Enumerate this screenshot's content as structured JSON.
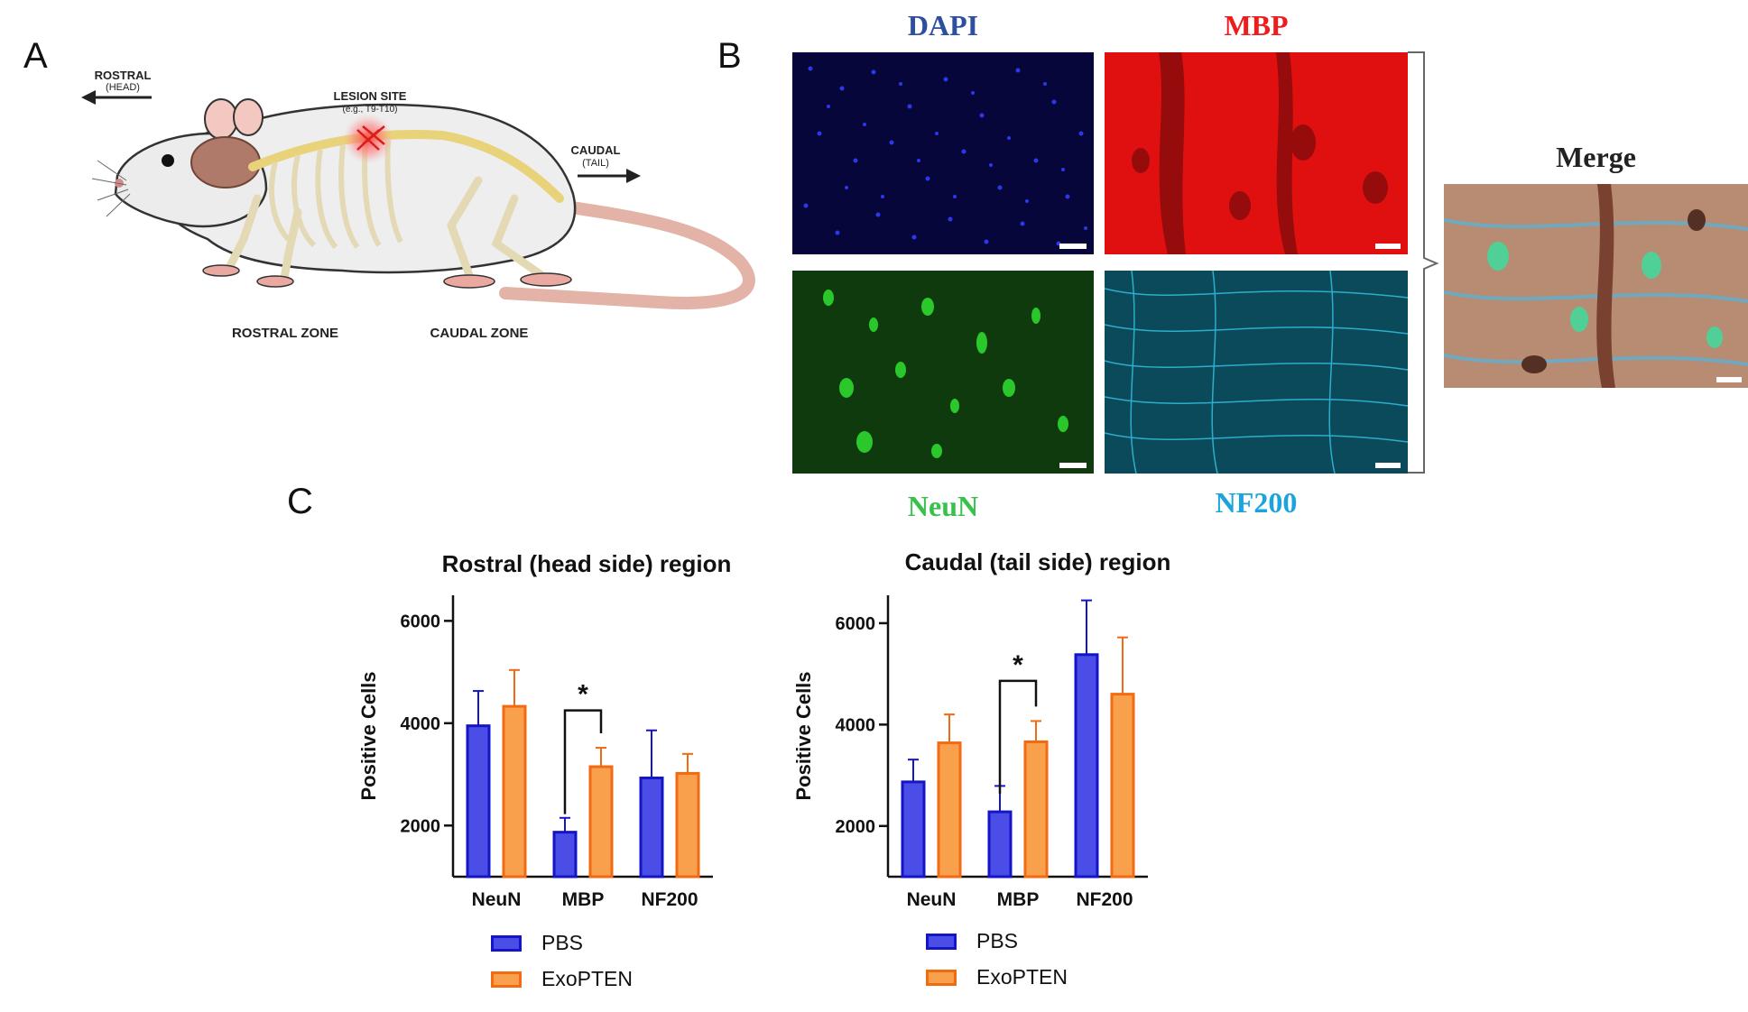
{
  "panels": {
    "a": "A",
    "b": "B",
    "c": "C"
  },
  "panel_a": {
    "rostral": "ROSTRAL",
    "rostral_sub": "(HEAD)",
    "caudal": "CAUDAL",
    "caudal_sub": "(TAIL)",
    "lesion": "LESION SITE",
    "lesion_sub": "(e.g., T9-T10)",
    "rostral_zone": "ROSTRAL ZONE",
    "caudal_zone": "CAUDAL ZONE"
  },
  "panel_b": {
    "dapi": {
      "label": "DAPI",
      "color": "#2e4fa0"
    },
    "mbp": {
      "label": "MBP",
      "color": "#ee1c1c"
    },
    "neun": {
      "label": "NeuN",
      "color": "#39c24b"
    },
    "nf200": {
      "label": "NF200",
      "color": "#1aa3dd"
    },
    "merge": {
      "label": "Merge",
      "color": "#222222"
    }
  },
  "colors": {
    "pbs_fill": "#4a4ee6",
    "pbs_stroke": "#1414c8",
    "exo_fill": "#f9a04c",
    "exo_stroke": "#f26a12"
  },
  "legend": [
    "PBS",
    "ExoPTEN"
  ],
  "chart_data": [
    {
      "type": "bar",
      "title": "Rostral (head side) region",
      "ylabel": "Positive Cells",
      "categories": [
        "NeuN",
        "MBP",
        "NF200"
      ],
      "ylim": [
        1000,
        6500
      ],
      "yticks": [
        2000,
        4000,
        6000
      ],
      "series": [
        {
          "name": "PBS",
          "values": [
            3950,
            1870,
            2930
          ],
          "errors": [
            680,
            280,
            930
          ]
        },
        {
          "name": "ExoPTEN",
          "values": [
            4330,
            3150,
            3020
          ],
          "errors": [
            710,
            370,
            380
          ]
        }
      ],
      "annotations": [
        {
          "category": "MBP",
          "text": "*"
        }
      ]
    },
    {
      "type": "bar",
      "title": "Caudal (tail side) region",
      "ylabel": "Positive Cells",
      "categories": [
        "NeuN",
        "MBP",
        "NF200"
      ],
      "ylim": [
        1000,
        6550
      ],
      "yticks": [
        2000,
        4000,
        6000
      ],
      "series": [
        {
          "name": "PBS",
          "values": [
            2870,
            2280,
            5380
          ],
          "errors": [
            440,
            510,
            1070
          ]
        },
        {
          "name": "ExoPTEN",
          "values": [
            3640,
            3660,
            4600
          ],
          "errors": [
            560,
            410,
            1120
          ]
        }
      ],
      "annotations": [
        {
          "category": "MBP",
          "text": "*"
        }
      ]
    }
  ]
}
